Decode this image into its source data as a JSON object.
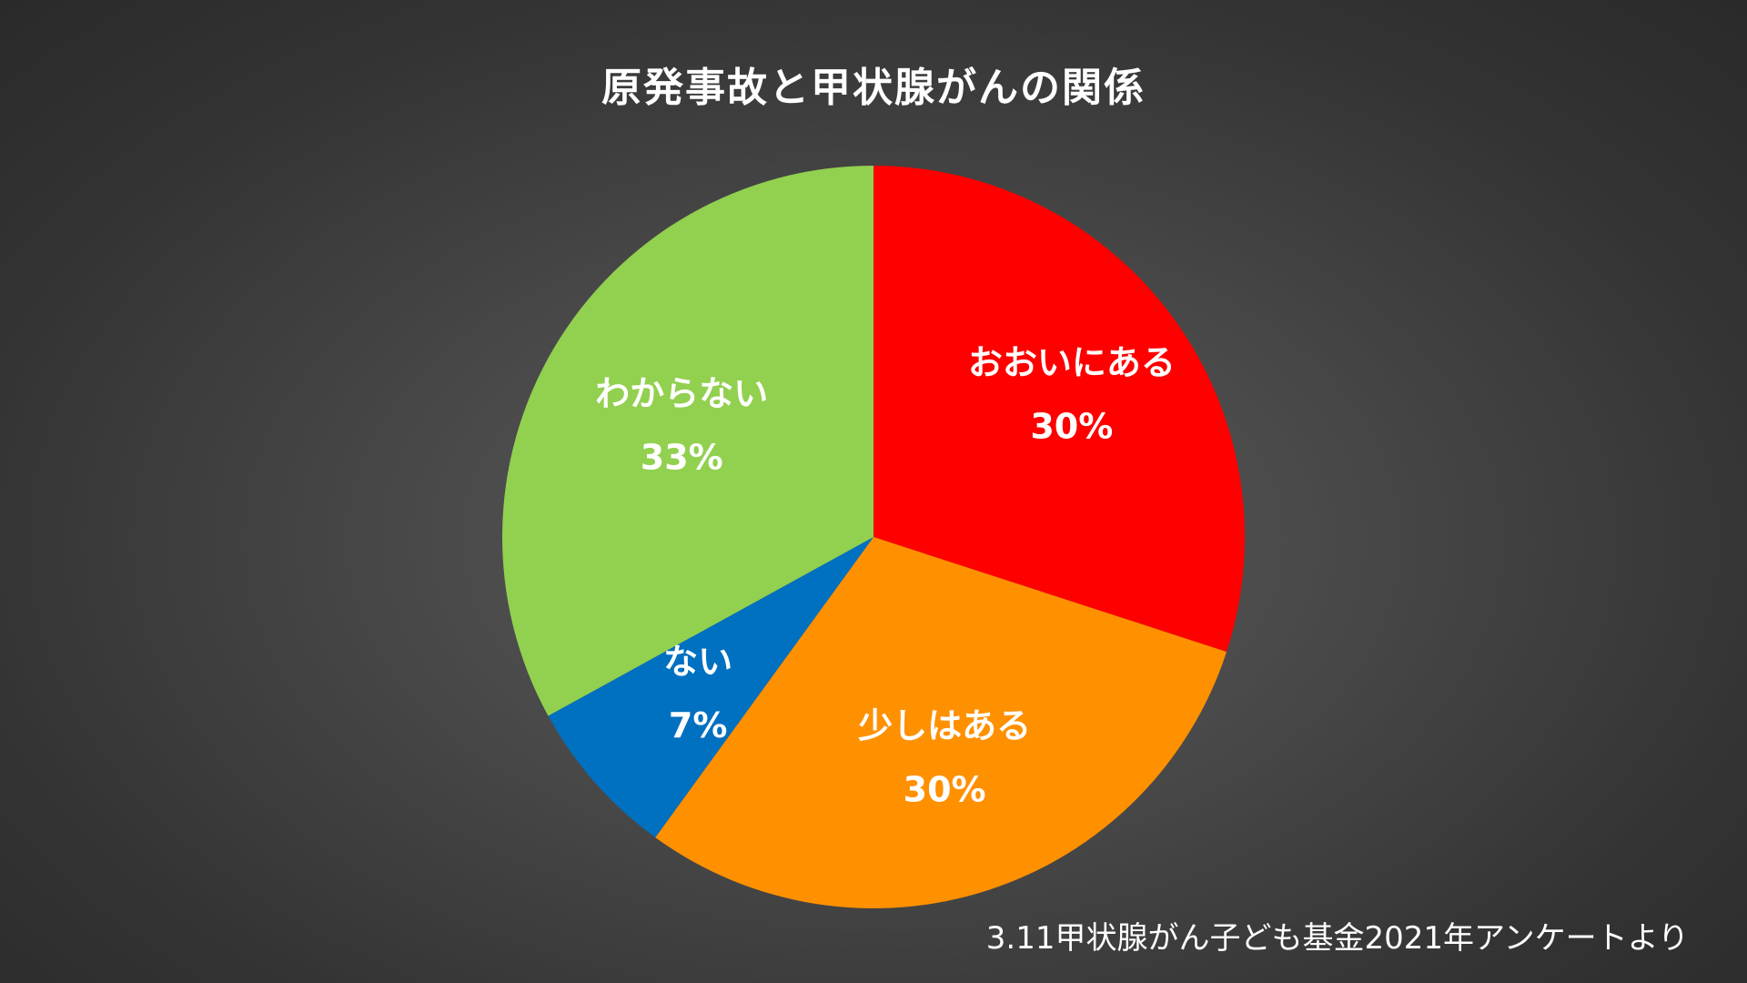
{
  "chart_data": {
    "type": "pie",
    "title": "原発事故と甲状腺がんの関係",
    "slices": [
      {
        "label": "おおいにある",
        "value": 30,
        "value_label": "30%",
        "color": "#ff0000"
      },
      {
        "label": "少しはある",
        "value": 30,
        "value_label": "30%",
        "color": "#ff9000"
      },
      {
        "label": "ない",
        "value": 7,
        "value_label": "7%",
        "color": "#0070c0"
      },
      {
        "label": "わからない",
        "value": 33,
        "value_label": "33%",
        "color": "#92d050"
      }
    ],
    "start_angle": "12 o'clock",
    "direction": "clockwise",
    "legend": "none"
  },
  "source": "3.11甲状腺がん子ども基金2021年アンケートより"
}
